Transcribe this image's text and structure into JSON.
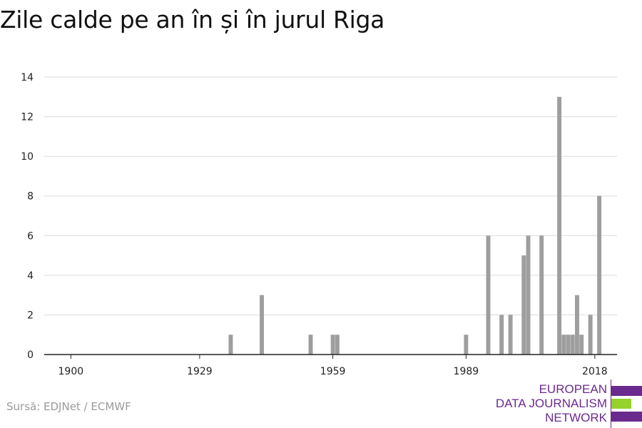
{
  "title": "Zile calde pe an în și în jurul Riga",
  "source": "Sursă: EDJNet / ECMWF",
  "logo": {
    "lines": [
      "EUROPEAN",
      "DATA JOURNALISM",
      "NETWORK"
    ],
    "colors": {
      "purple": "#6a2a8e",
      "green": "#96d32a"
    }
  },
  "chart_data": {
    "type": "bar",
    "x_label_ticks": [
      1900,
      1929,
      1959,
      1989,
      2018
    ],
    "y_ticks": [
      0,
      2,
      4,
      6,
      8,
      10,
      12,
      14
    ],
    "ylim": [
      0,
      14
    ],
    "xlim": [
      1894,
      2023
    ],
    "grid": true,
    "bar_color": "#9e9e9e",
    "years": [
      1936,
      1943,
      1954,
      1959,
      1960,
      1989,
      1994,
      1997,
      1999,
      2002,
      2003,
      2006,
      2010,
      2011,
      2012,
      2013,
      2014,
      2015,
      2017,
      2019
    ],
    "values": [
      1,
      3,
      1,
      1,
      1,
      1,
      6,
      2,
      2,
      5,
      6,
      6,
      13,
      1,
      1,
      1,
      3,
      1,
      2,
      8
    ]
  }
}
